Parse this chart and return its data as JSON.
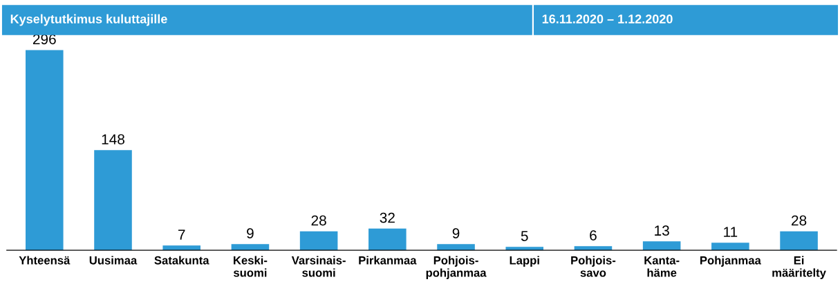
{
  "chart_data": {
    "type": "bar",
    "title": "Kyselytutkimus kuluttajille",
    "subtitle": "16.11.2020 – 1.12.2020",
    "categories": [
      "Yhteensä",
      "Uusimaa",
      "Satakunta",
      "Keski-\nsuomi",
      "Varsinais-\nsuomi",
      "Pirkanmaa",
      "Pohjois-\npohjanmaa",
      "Lappi",
      "Pohjois-\nsavo",
      "Kanta-\nhäme",
      "Pohjanmaa",
      "Ei\nmääritelty"
    ],
    "values": [
      296,
      148,
      7,
      9,
      28,
      32,
      9,
      5,
      6,
      13,
      11,
      28
    ],
    "color": "#2e9bd6",
    "data_labels": true,
    "grid": false,
    "legend": false
  }
}
